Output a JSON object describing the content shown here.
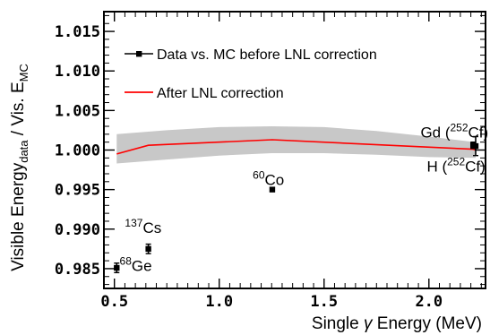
{
  "chart_data": {
    "type": "scatter",
    "xlabel_main": "Single ",
    "xlabel_sym": "γ",
    "xlabel_rest": " Energy (MeV)",
    "ylabel_a": "Visible Energy",
    "ylabel_a_sub": "data",
    "ylabel_b": " / Vis. E",
    "ylabel_b_sub": "MC",
    "xlim": [
      0.45,
      2.27
    ],
    "ylim": [
      0.9825,
      1.0175
    ],
    "x_ticks": [
      0.5,
      1.0,
      1.5,
      2.0
    ],
    "x_tick_labels": [
      "0.5",
      "1.0",
      "1.5",
      "2.0"
    ],
    "y_ticks": [
      0.985,
      0.99,
      0.995,
      1.0,
      1.005,
      1.01,
      1.015
    ],
    "y_tick_labels": [
      "0.985",
      "0.990",
      "0.995",
      "1.000",
      "1.005",
      "1.010",
      "1.015"
    ],
    "legend": [
      {
        "label": "Data vs. MC before LNL correction",
        "style": "marker"
      },
      {
        "label": "After LNL correction",
        "style": "line"
      }
    ],
    "series": [
      {
        "name": "Data vs. MC before LNL correction",
        "style": "marker",
        "color": "#000000",
        "points": [
          {
            "x": 0.511,
            "y": 0.9851,
            "err": 0.0006
          },
          {
            "x": 0.662,
            "y": 0.9875,
            "err": 0.0006
          },
          {
            "x": 1.253,
            "y": 0.995,
            "err": 0.0002
          },
          {
            "x": 2.223,
            "y": 1.0005,
            "err": 0.0012
          },
          {
            "x": 2.211,
            "y": 1.0006,
            "err": 0.0004
          }
        ]
      },
      {
        "name": "After LNL correction",
        "style": "line",
        "color": "#ff0000",
        "x": [
          0.511,
          0.662,
          1.253,
          2.211,
          2.223
        ],
        "y": [
          0.9995,
          1.0006,
          1.0013,
          1.0001,
          1.0
        ]
      }
    ],
    "band": {
      "color": "#c8c8c8",
      "x": [
        0.511,
        0.75,
        1.0,
        1.25,
        1.5,
        1.75,
        2.0,
        2.223
      ],
      "upper": [
        1.002,
        1.0025,
        1.0029,
        1.003,
        1.0029,
        1.0024,
        1.0017,
        1.001
      ],
      "lower": [
        0.9983,
        0.9988,
        0.9993,
        0.9996,
        0.9996,
        0.9994,
        0.9991,
        0.999
      ]
    },
    "annotations": [
      {
        "sup": "137",
        "text": "Cs",
        "x": 0.55,
        "y": 0.9895
      },
      {
        "sup": "68",
        "text": "Ge",
        "x": 0.525,
        "y": 0.9847
      },
      {
        "sup": "60",
        "text": "Co",
        "x": 1.16,
        "y": 0.9956
      },
      {
        "pre": "Gd (",
        "sup": "252",
        "text": "Cf)",
        "x": 1.96,
        "y": 1.0016
      },
      {
        "pre": "H (",
        "sup": "252",
        "text": "Cf)",
        "x": 1.99,
        "y": 0.9973
      }
    ]
  }
}
